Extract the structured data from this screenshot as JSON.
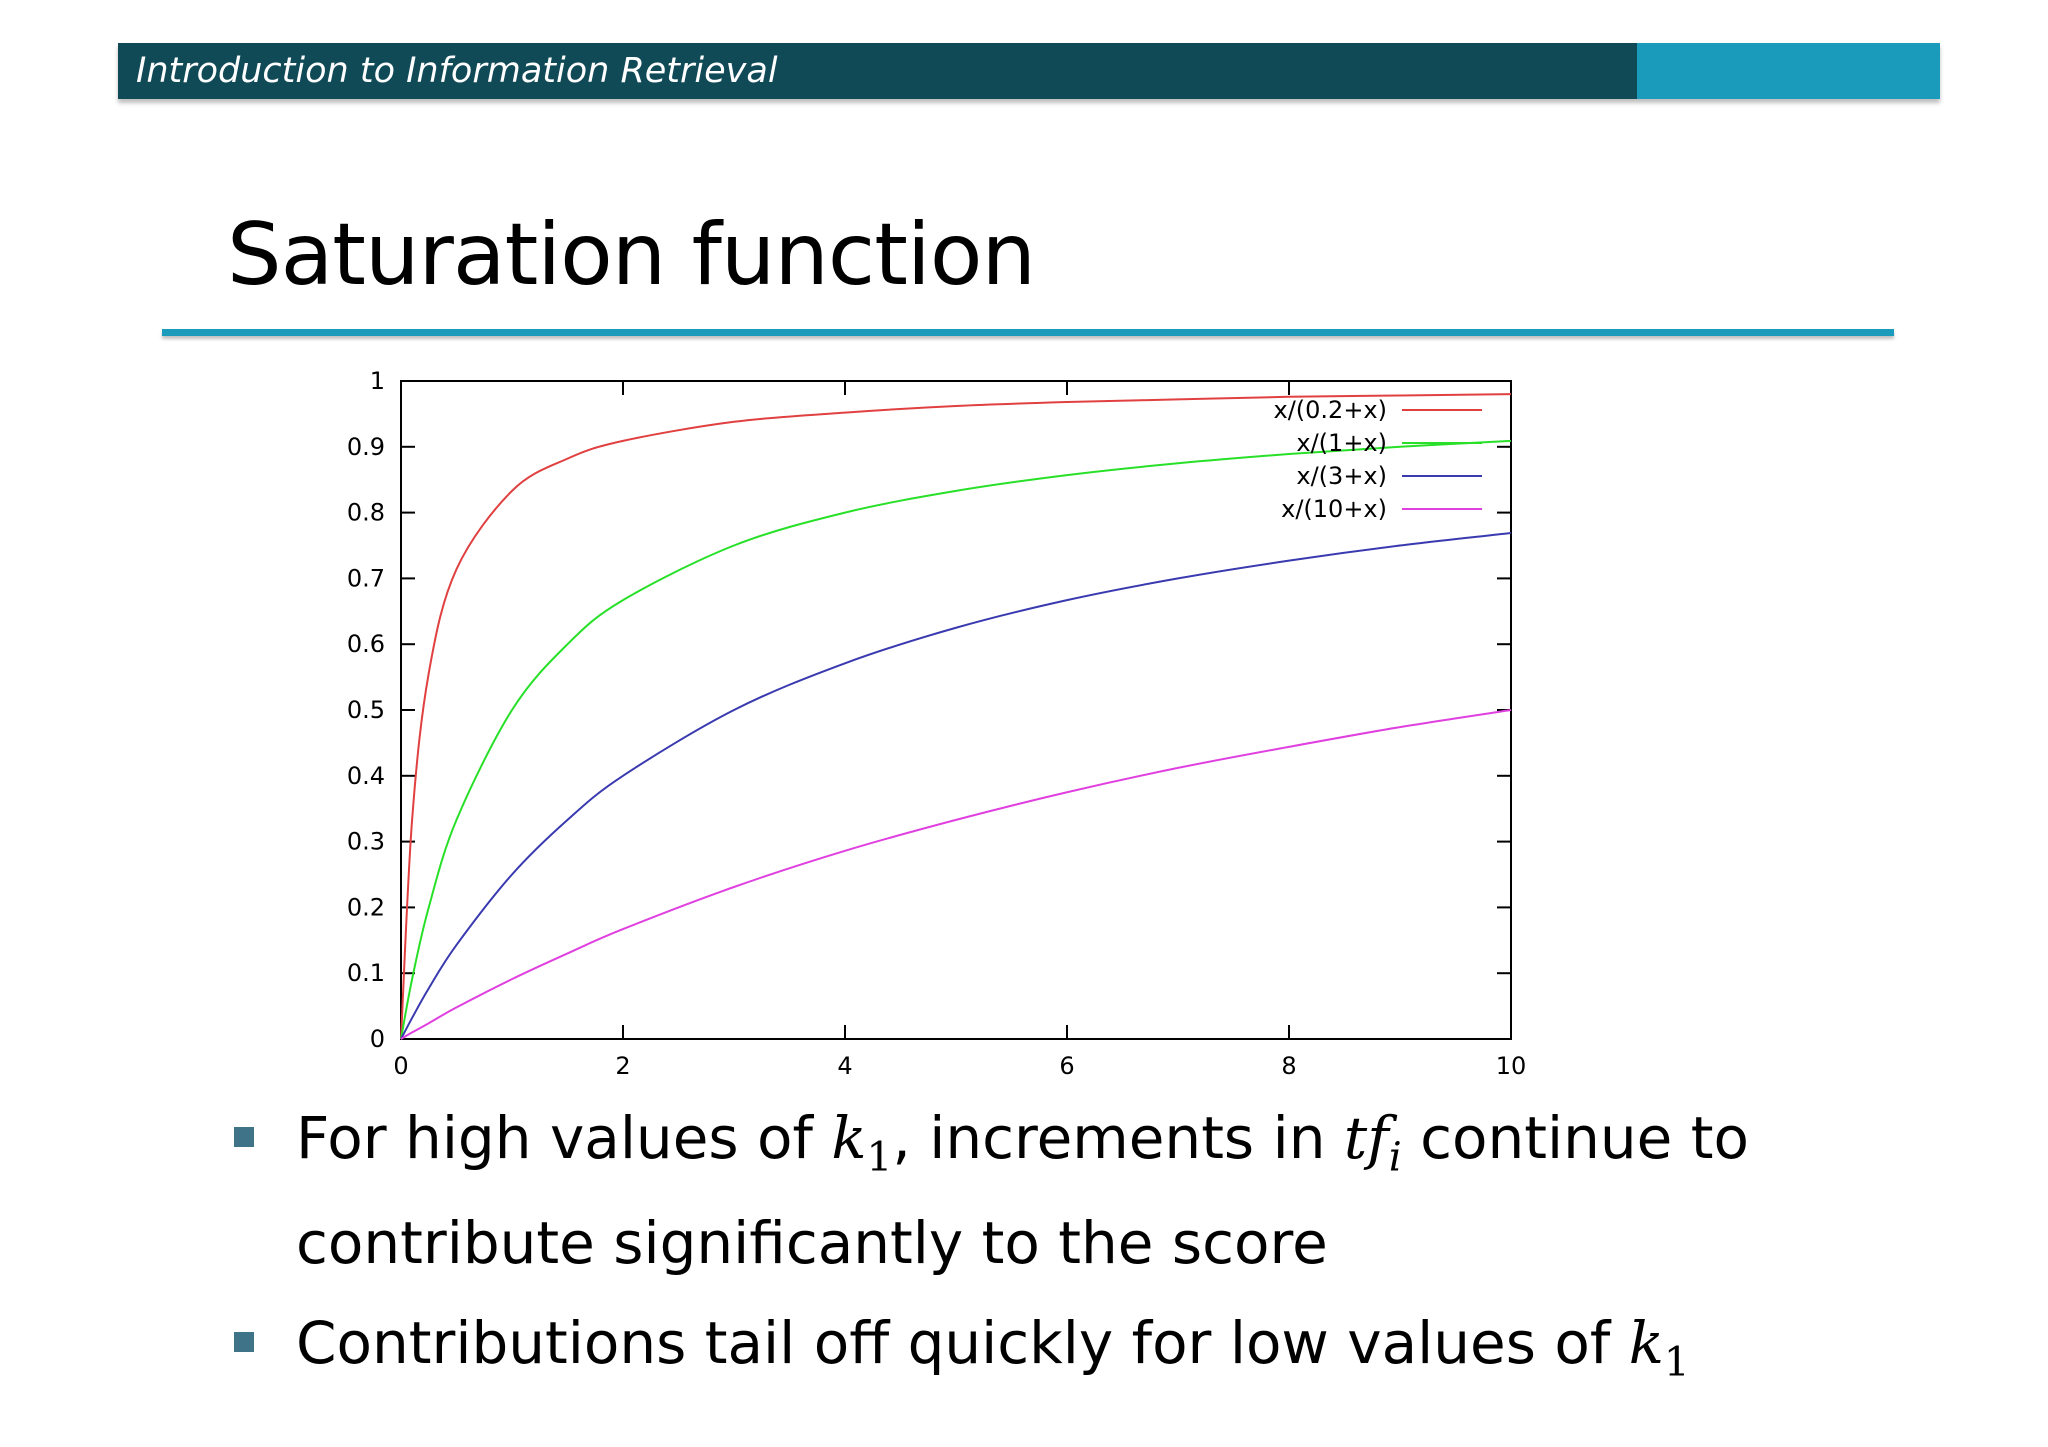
{
  "header": {
    "title": "Introduction to Information Retrieval"
  },
  "slide": {
    "title": "Saturation function"
  },
  "bullets": [
    {
      "prefix": "For high values of ",
      "sym1": "k",
      "sub1": "1",
      "middle": ", increments in ",
      "sym2": "tf",
      "sub2": "i",
      "suffix": " continue to contribute significantly to the score"
    },
    {
      "prefix": "Contributions tail off quickly for low values of ",
      "sym1": "k",
      "sub1": "1"
    }
  ],
  "chart_data": {
    "type": "line",
    "title": "",
    "xlabel": "",
    "ylabel": "",
    "xlim": [
      0,
      10
    ],
    "ylim": [
      0,
      1
    ],
    "x_ticks": [
      "0",
      "2",
      "4",
      "6",
      "8",
      "10"
    ],
    "y_ticks": [
      "0",
      "0.1",
      "0.2",
      "0.3",
      "0.4",
      "0.5",
      "0.6",
      "0.7",
      "0.8",
      "0.9",
      "1"
    ],
    "grid": false,
    "legend_position": "top-right",
    "x": [
      0,
      0.1,
      0.25,
      0.5,
      1,
      1.5,
      2,
      3,
      4,
      5,
      6,
      7,
      8,
      9,
      10
    ],
    "series": [
      {
        "name": "x/(0.2+x)",
        "color": "#e04040",
        "values": [
          0,
          0.333,
          0.556,
          0.714,
          0.833,
          0.882,
          0.909,
          0.938,
          0.952,
          0.962,
          0.968,
          0.972,
          0.976,
          0.978,
          0.98
        ]
      },
      {
        "name": "x/(1+x)",
        "color": "#28e028",
        "values": [
          0,
          0.091,
          0.2,
          0.333,
          0.5,
          0.6,
          0.667,
          0.75,
          0.8,
          0.833,
          0.857,
          0.875,
          0.889,
          0.9,
          0.909
        ]
      },
      {
        "name": "x/(3+x)",
        "color": "#3a3ab0",
        "values": [
          0,
          0.032,
          0.077,
          0.143,
          0.25,
          0.333,
          0.4,
          0.5,
          0.571,
          0.625,
          0.667,
          0.7,
          0.727,
          0.75,
          0.769
        ]
      },
      {
        "name": "x/(10+x)",
        "color": "#e040e0",
        "values": [
          0,
          0.01,
          0.024,
          0.048,
          0.091,
          0.13,
          0.167,
          0.231,
          0.286,
          0.333,
          0.375,
          0.412,
          0.444,
          0.474,
          0.5
        ]
      }
    ]
  }
}
